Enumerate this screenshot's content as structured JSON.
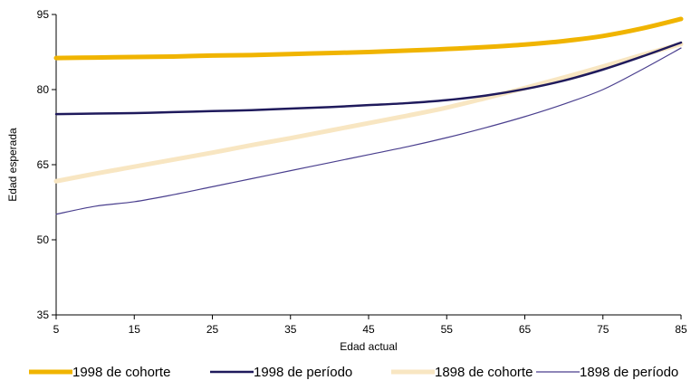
{
  "chart_data": {
    "type": "line",
    "title": "",
    "xlabel": "Edad actual",
    "ylabel": "Edad esperada",
    "xlim": [
      5,
      85
    ],
    "ylim": [
      35,
      95
    ],
    "x_ticks": [
      "5",
      "15",
      "25",
      "35",
      "45",
      "55",
      "65",
      "75",
      "85"
    ],
    "y_ticks": [
      "35",
      "50",
      "65",
      "80",
      "95"
    ],
    "grid": false,
    "legend_position": "bottom",
    "x": [
      5,
      10,
      15,
      20,
      25,
      30,
      35,
      40,
      45,
      50,
      55,
      60,
      65,
      70,
      75,
      80,
      85
    ],
    "series": [
      {
        "name": "1998 de cohorte",
        "color": "#F0B400",
        "style": "thick",
        "values": [
          86.3,
          86.4,
          86.5,
          86.6,
          86.8,
          86.9,
          87.1,
          87.3,
          87.5,
          87.8,
          88.1,
          88.5,
          89.0,
          89.7,
          90.7,
          92.2,
          94.1
        ]
      },
      {
        "name": "1998 de período",
        "color": "#1F1A5C",
        "style": "medium",
        "values": [
          75.1,
          75.2,
          75.3,
          75.5,
          75.7,
          75.9,
          76.2,
          76.5,
          76.9,
          77.3,
          77.9,
          78.8,
          80.1,
          81.8,
          84.0,
          86.6,
          89.4
        ]
      },
      {
        "name": "1898 de cohorte",
        "color": "#F8E6C2",
        "style": "thick",
        "values": [
          61.7,
          63.2,
          64.6,
          66.0,
          67.4,
          68.9,
          70.3,
          71.8,
          73.3,
          74.8,
          76.4,
          78.3,
          80.3,
          82.4,
          84.6,
          86.9,
          89.1
        ]
      },
      {
        "name": "1898 de período",
        "color": "#4A3F8E",
        "style": "thin",
        "values": [
          55.1,
          56.7,
          57.6,
          59.0,
          60.6,
          62.2,
          63.8,
          65.4,
          67.0,
          68.6,
          70.4,
          72.4,
          74.6,
          77.1,
          80.0,
          84.0,
          88.3
        ]
      }
    ]
  }
}
